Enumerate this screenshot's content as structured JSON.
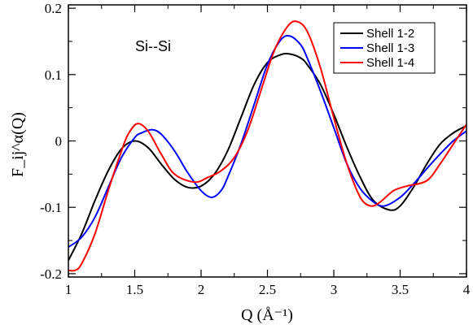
{
  "chart_data": {
    "type": "line",
    "annotation": "Si--Si",
    "xlabel": "Q (Å⁻¹)",
    "ylabel": "F_ij^α(Q)",
    "xlim": [
      1,
      4
    ],
    "ylim": [
      -0.205,
      0.205
    ],
    "x_ticks": [
      1,
      1.5,
      2,
      2.5,
      3,
      3.5,
      4
    ],
    "x_tick_labels": [
      "1",
      "1.5",
      "2",
      "2.5",
      "3",
      "3.5",
      "4"
    ],
    "y_ticks": [
      -0.2,
      -0.1,
      0,
      0.1,
      0.2
    ],
    "y_tick_labels": [
      "-0.2",
      "-0.1",
      "0",
      "0.1",
      "0.2"
    ],
    "legend_position": "top-right",
    "series": [
      {
        "name": "Shell 1-2",
        "color": "#000000",
        "x": [
          1.0,
          1.1,
          1.2,
          1.3,
          1.4,
          1.5,
          1.6,
          1.7,
          1.8,
          1.9,
          2.0,
          2.1,
          2.2,
          2.3,
          2.4,
          2.5,
          2.6,
          2.67,
          2.75,
          2.8,
          2.9,
          3.0,
          3.1,
          3.2,
          3.3,
          3.42,
          3.5,
          3.6,
          3.7,
          3.8,
          3.9,
          4.0
        ],
        "y": [
          -0.18,
          -0.14,
          -0.09,
          -0.045,
          -0.012,
          0.0,
          -0.01,
          -0.035,
          -0.058,
          -0.07,
          -0.068,
          -0.05,
          -0.015,
          0.035,
          0.085,
          0.118,
          0.13,
          0.131,
          0.125,
          0.115,
          0.085,
          0.04,
          -0.01,
          -0.055,
          -0.09,
          -0.104,
          -0.098,
          -0.07,
          -0.035,
          -0.005,
          0.012,
          0.023
        ]
      },
      {
        "name": "Shell 1-3",
        "color": "#0000ff",
        "x": [
          1.0,
          1.1,
          1.2,
          1.3,
          1.4,
          1.5,
          1.55,
          1.63,
          1.7,
          1.8,
          1.9,
          2.0,
          2.08,
          2.15,
          2.2,
          2.3,
          2.4,
          2.5,
          2.6,
          2.67,
          2.75,
          2.8,
          2.9,
          3.0,
          3.1,
          3.2,
          3.3,
          3.38,
          3.5,
          3.6,
          3.7,
          3.8,
          3.9,
          4.0
        ],
        "y": [
          -0.16,
          -0.145,
          -0.115,
          -0.07,
          -0.025,
          0.005,
          0.012,
          0.017,
          0.01,
          -0.015,
          -0.048,
          -0.075,
          -0.085,
          -0.075,
          -0.055,
          -0.005,
          0.055,
          0.115,
          0.152,
          0.158,
          0.145,
          0.125,
          0.075,
          0.02,
          -0.035,
          -0.072,
          -0.092,
          -0.098,
          -0.085,
          -0.065,
          -0.042,
          -0.02,
          0.0,
          0.015
        ]
      },
      {
        "name": "Shell 1-4",
        "color": "#ff0000",
        "x": [
          1.0,
          1.05,
          1.1,
          1.2,
          1.3,
          1.4,
          1.45,
          1.52,
          1.6,
          1.7,
          1.8,
          1.95,
          2.05,
          2.15,
          2.25,
          2.35,
          2.45,
          2.55,
          2.65,
          2.72,
          2.8,
          2.9,
          3.0,
          3.1,
          3.2,
          3.28,
          3.35,
          3.45,
          3.55,
          3.7,
          3.8,
          3.9,
          4.0
        ],
        "y": [
          -0.195,
          -0.195,
          -0.185,
          -0.14,
          -0.075,
          -0.015,
          0.01,
          0.026,
          0.015,
          -0.02,
          -0.05,
          -0.062,
          -0.055,
          -0.045,
          -0.025,
          0.015,
          0.075,
          0.135,
          0.172,
          0.18,
          0.165,
          0.11,
          0.035,
          -0.035,
          -0.085,
          -0.098,
          -0.092,
          -0.075,
          -0.068,
          -0.06,
          -0.035,
          -0.005,
          0.025
        ]
      }
    ]
  }
}
